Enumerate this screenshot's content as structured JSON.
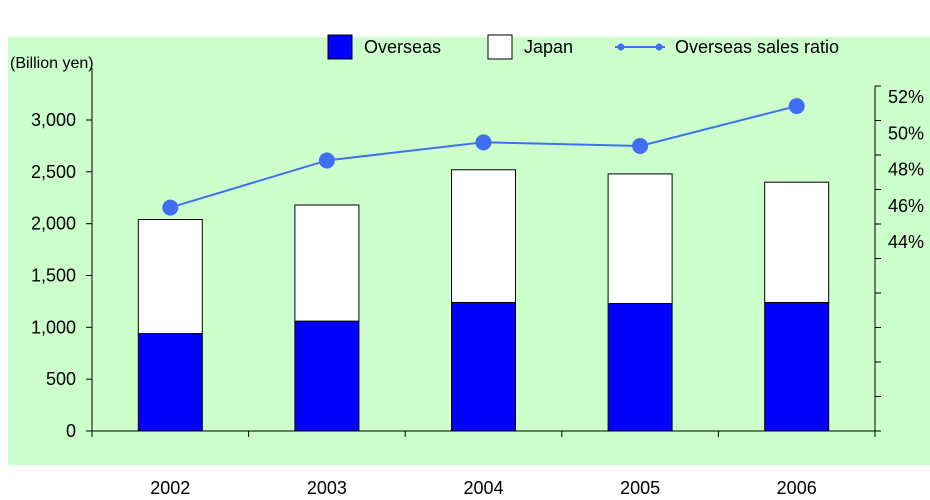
{
  "chart_data": {
    "type": "bar",
    "title": "",
    "categories": [
      "2002",
      "2003",
      "2004",
      "2005",
      "2006"
    ],
    "left_axis": {
      "label": "(Billion yen)",
      "ylim": [
        0,
        3000
      ],
      "ticks": [
        0,
        500,
        1000,
        1500,
        2000,
        2500,
        3000
      ],
      "tick_labels": [
        "0",
        "500",
        "1,000",
        "1,500",
        "2,000",
        "2,500",
        "3,000"
      ]
    },
    "right_axis": {
      "label": "",
      "ylim": [
        36,
        52
      ],
      "ticks": [
        44,
        46,
        48,
        50,
        52
      ],
      "tick_labels": [
        "44%",
        "46%",
        "48%",
        "50%",
        "52%"
      ]
    },
    "series": [
      {
        "name": "Overseas",
        "kind": "bar-stacked",
        "axis": "left",
        "color": "#0000ff",
        "values": [
          940,
          1060,
          1240,
          1230,
          1240
        ]
      },
      {
        "name": "Japan",
        "kind": "bar-stacked",
        "axis": "left",
        "color": "#ffffff",
        "values": [
          1100,
          1120,
          1280,
          1250,
          1160
        ]
      },
      {
        "name": "Overseas sales ratio",
        "kind": "line",
        "axis": "right",
        "color": "#3f6ff0",
        "values": [
          45.9,
          48.5,
          49.5,
          49.3,
          51.5
        ]
      }
    ],
    "legend_position": "top-right",
    "background": "#ccffcc",
    "grid": false
  }
}
